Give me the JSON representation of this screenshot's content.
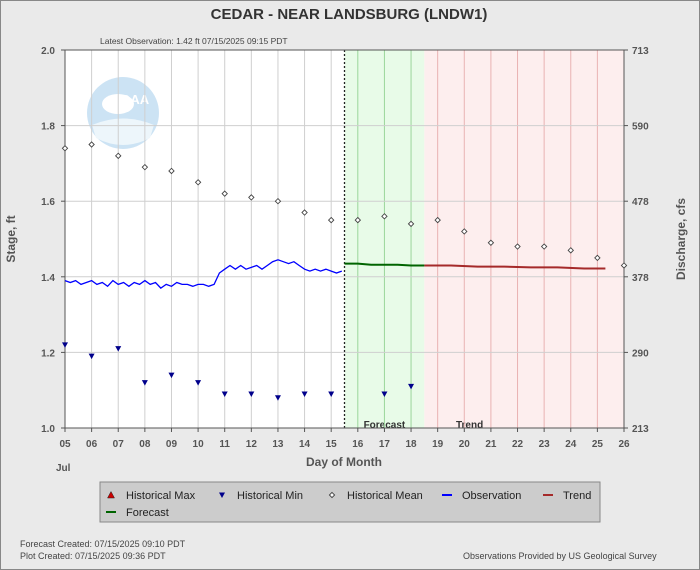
{
  "chart_data": {
    "type": "line",
    "title": "CEDAR - NEAR LANDSBURG  (LNDW1)",
    "subtitle": "Latest Observation: 1.42 ft 07/15/2025 09:15 PDT",
    "xlabel": "Day of Month",
    "month_label": "Jul",
    "ylabel": "Stage, ft",
    "y2label": "Discharge, cfs",
    "xlim": [
      5,
      26
    ],
    "ylim": [
      1.0,
      2.0
    ],
    "x_ticks": [
      "05",
      "06",
      "07",
      "08",
      "09",
      "10",
      "11",
      "12",
      "13",
      "14",
      "15",
      "16",
      "17",
      "18",
      "19",
      "20",
      "21",
      "22",
      "23",
      "24",
      "25",
      "26"
    ],
    "y_ticks": [
      "1.0",
      "1.2",
      "1.4",
      "1.6",
      "1.8",
      "2.0"
    ],
    "y2_ticks": [
      {
        "stage": 1.0,
        "label": "213"
      },
      {
        "stage": 1.2,
        "label": "290"
      },
      {
        "stage": 1.4,
        "label": "378"
      },
      {
        "stage": 1.6,
        "label": "478"
      },
      {
        "stage": 1.8,
        "label": "590"
      },
      {
        "stage": 2.0,
        "label": "713"
      }
    ],
    "regions": {
      "forecast_start": 15.5,
      "forecast_end": 18.5,
      "trend_end": 26,
      "forecast_label": "Forecast",
      "trend_label": "Trend"
    },
    "series": [
      {
        "name": "Historical Mean",
        "color": "#444444",
        "x": [
          5,
          6,
          7,
          8,
          9,
          10,
          11,
          12,
          13,
          14,
          15,
          16,
          17,
          18,
          19,
          20,
          21,
          22,
          23,
          24,
          25,
          26
        ],
        "y": [
          1.74,
          1.75,
          1.72,
          1.69,
          1.68,
          1.65,
          1.62,
          1.61,
          1.6,
          1.57,
          1.55,
          1.55,
          1.56,
          1.54,
          1.55,
          1.52,
          1.49,
          1.48,
          1.48,
          1.47,
          1.45,
          1.43
        ]
      },
      {
        "name": "Historical Min",
        "color": "#00008b",
        "x": [
          5,
          6,
          7,
          8,
          9,
          10,
          11,
          12,
          13,
          14,
          15,
          17,
          18
        ],
        "y": [
          1.22,
          1.19,
          1.21,
          1.12,
          1.14,
          1.12,
          1.09,
          1.09,
          1.08,
          1.09,
          1.09,
          1.09,
          1.11
        ]
      },
      {
        "name": "Observation",
        "color": "#0000ff",
        "x": [
          5.0,
          5.2,
          5.4,
          5.6,
          5.8,
          6.0,
          6.2,
          6.4,
          6.6,
          6.8,
          7.0,
          7.2,
          7.4,
          7.6,
          7.8,
          8.0,
          8.2,
          8.4,
          8.6,
          8.8,
          9.0,
          9.2,
          9.4,
          9.6,
          9.8,
          10.0,
          10.2,
          10.4,
          10.6,
          10.8,
          11.0,
          11.2,
          11.4,
          11.6,
          11.8,
          12.0,
          12.2,
          12.4,
          12.6,
          12.8,
          13.0,
          13.2,
          13.4,
          13.6,
          13.8,
          14.0,
          14.2,
          14.4,
          14.6,
          14.8,
          15.0,
          15.2,
          15.4
        ],
        "y": [
          1.39,
          1.385,
          1.39,
          1.38,
          1.385,
          1.39,
          1.38,
          1.385,
          1.375,
          1.39,
          1.38,
          1.385,
          1.375,
          1.385,
          1.38,
          1.39,
          1.38,
          1.385,
          1.37,
          1.38,
          1.375,
          1.385,
          1.38,
          1.38,
          1.375,
          1.38,
          1.38,
          1.375,
          1.38,
          1.41,
          1.42,
          1.43,
          1.42,
          1.43,
          1.42,
          1.425,
          1.43,
          1.42,
          1.43,
          1.44,
          1.445,
          1.44,
          1.435,
          1.44,
          1.43,
          1.42,
          1.415,
          1.42,
          1.415,
          1.42,
          1.415,
          1.41,
          1.415
        ]
      },
      {
        "name": "Forecast",
        "color": "#006400",
        "x": [
          15.5,
          16.0,
          16.5,
          17.0,
          17.5,
          18.0,
          18.5
        ],
        "y": [
          1.435,
          1.435,
          1.432,
          1.432,
          1.432,
          1.43,
          1.43
        ]
      },
      {
        "name": "Trend",
        "color": "#a52a2a",
        "x": [
          18.5,
          19.5,
          20.5,
          21.5,
          22.5,
          23.5,
          24.5,
          25.3
        ],
        "y": [
          1.43,
          1.43,
          1.427,
          1.427,
          1.425,
          1.425,
          1.422,
          1.422
        ]
      }
    ],
    "legend": [
      {
        "label": "Historical Max",
        "symbol": "triangle-up",
        "color": "#cc0000"
      },
      {
        "label": "Historical Min",
        "symbol": "triangle-down",
        "color": "#00008b"
      },
      {
        "label": "Historical Mean",
        "symbol": "diamond",
        "color": "#444444"
      },
      {
        "label": "Observation",
        "symbol": "line",
        "color": "#0000ff"
      },
      {
        "label": "Trend",
        "symbol": "line",
        "color": "#a52a2a"
      },
      {
        "label": "Forecast",
        "symbol": "line",
        "color": "#006400"
      }
    ],
    "logo_text": "NOAA"
  },
  "footer": {
    "forecast_created": "Forecast Created: 07/15/2025 09:10 PDT",
    "plot_created": "Plot Created: 07/15/2025 09:36 PDT",
    "source": "Observations Provided by US Geological Survey"
  }
}
